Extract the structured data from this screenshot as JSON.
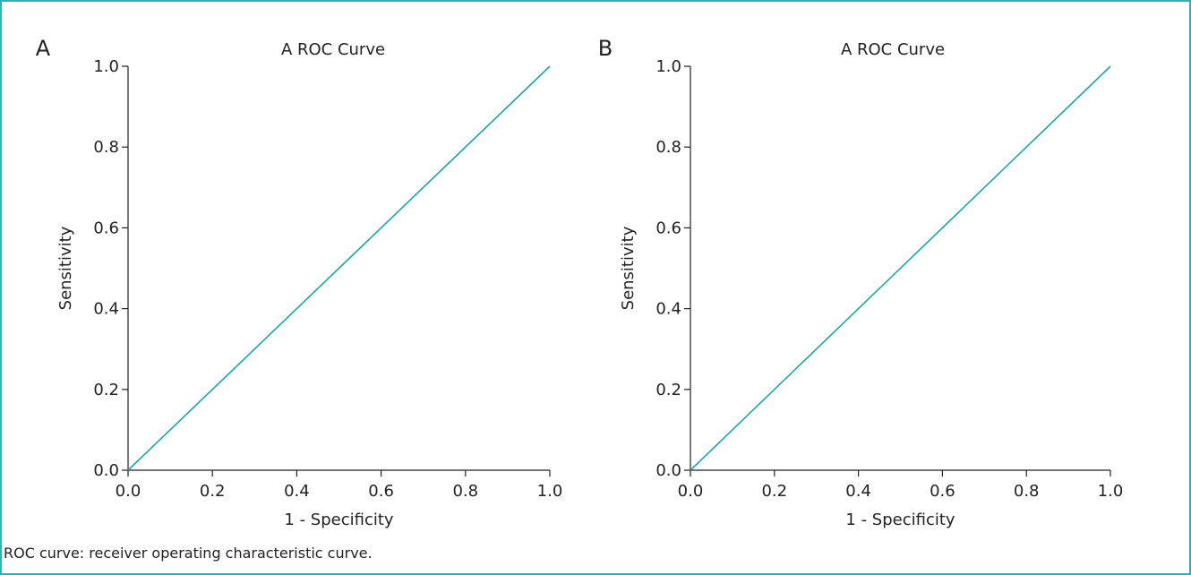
{
  "caption": "ROC curve: receiver operating characteristic curve.",
  "colors": {
    "line": "#1aa5aa",
    "axis": "#222222",
    "frame": "#2bb3b8"
  },
  "chart_data": [
    {
      "panel_label": "A",
      "type": "line",
      "title": "A ROC Curve",
      "xlabel": "1 - Specificity",
      "ylabel": "Sensitivity",
      "xlim": [
        0,
        1
      ],
      "ylim": [
        0,
        1
      ],
      "xticks": [
        "0.0",
        "0.2",
        "0.4",
        "0.6",
        "0.8",
        "1.0"
      ],
      "yticks": [
        "0.0",
        "0.2",
        "0.4",
        "0.6",
        "0.8",
        "1.0"
      ],
      "grid": false,
      "series": [
        {
          "x": [
            0,
            1
          ],
          "y": [
            0,
            1
          ]
        }
      ]
    },
    {
      "panel_label": "B",
      "type": "line",
      "title": "A ROC Curve",
      "xlabel": "1 - Specificity",
      "ylabel": "Sensitivity",
      "xlim": [
        0,
        1
      ],
      "ylim": [
        0,
        1
      ],
      "xticks": [
        "0.0",
        "0.2",
        "0.4",
        "0.6",
        "0.8",
        "1.0"
      ],
      "yticks": [
        "0.0",
        "0.2",
        "0.4",
        "0.6",
        "0.8",
        "1.0"
      ],
      "grid": false,
      "series": [
        {
          "x": [
            0,
            1
          ],
          "y": [
            0,
            1
          ]
        }
      ]
    }
  ]
}
